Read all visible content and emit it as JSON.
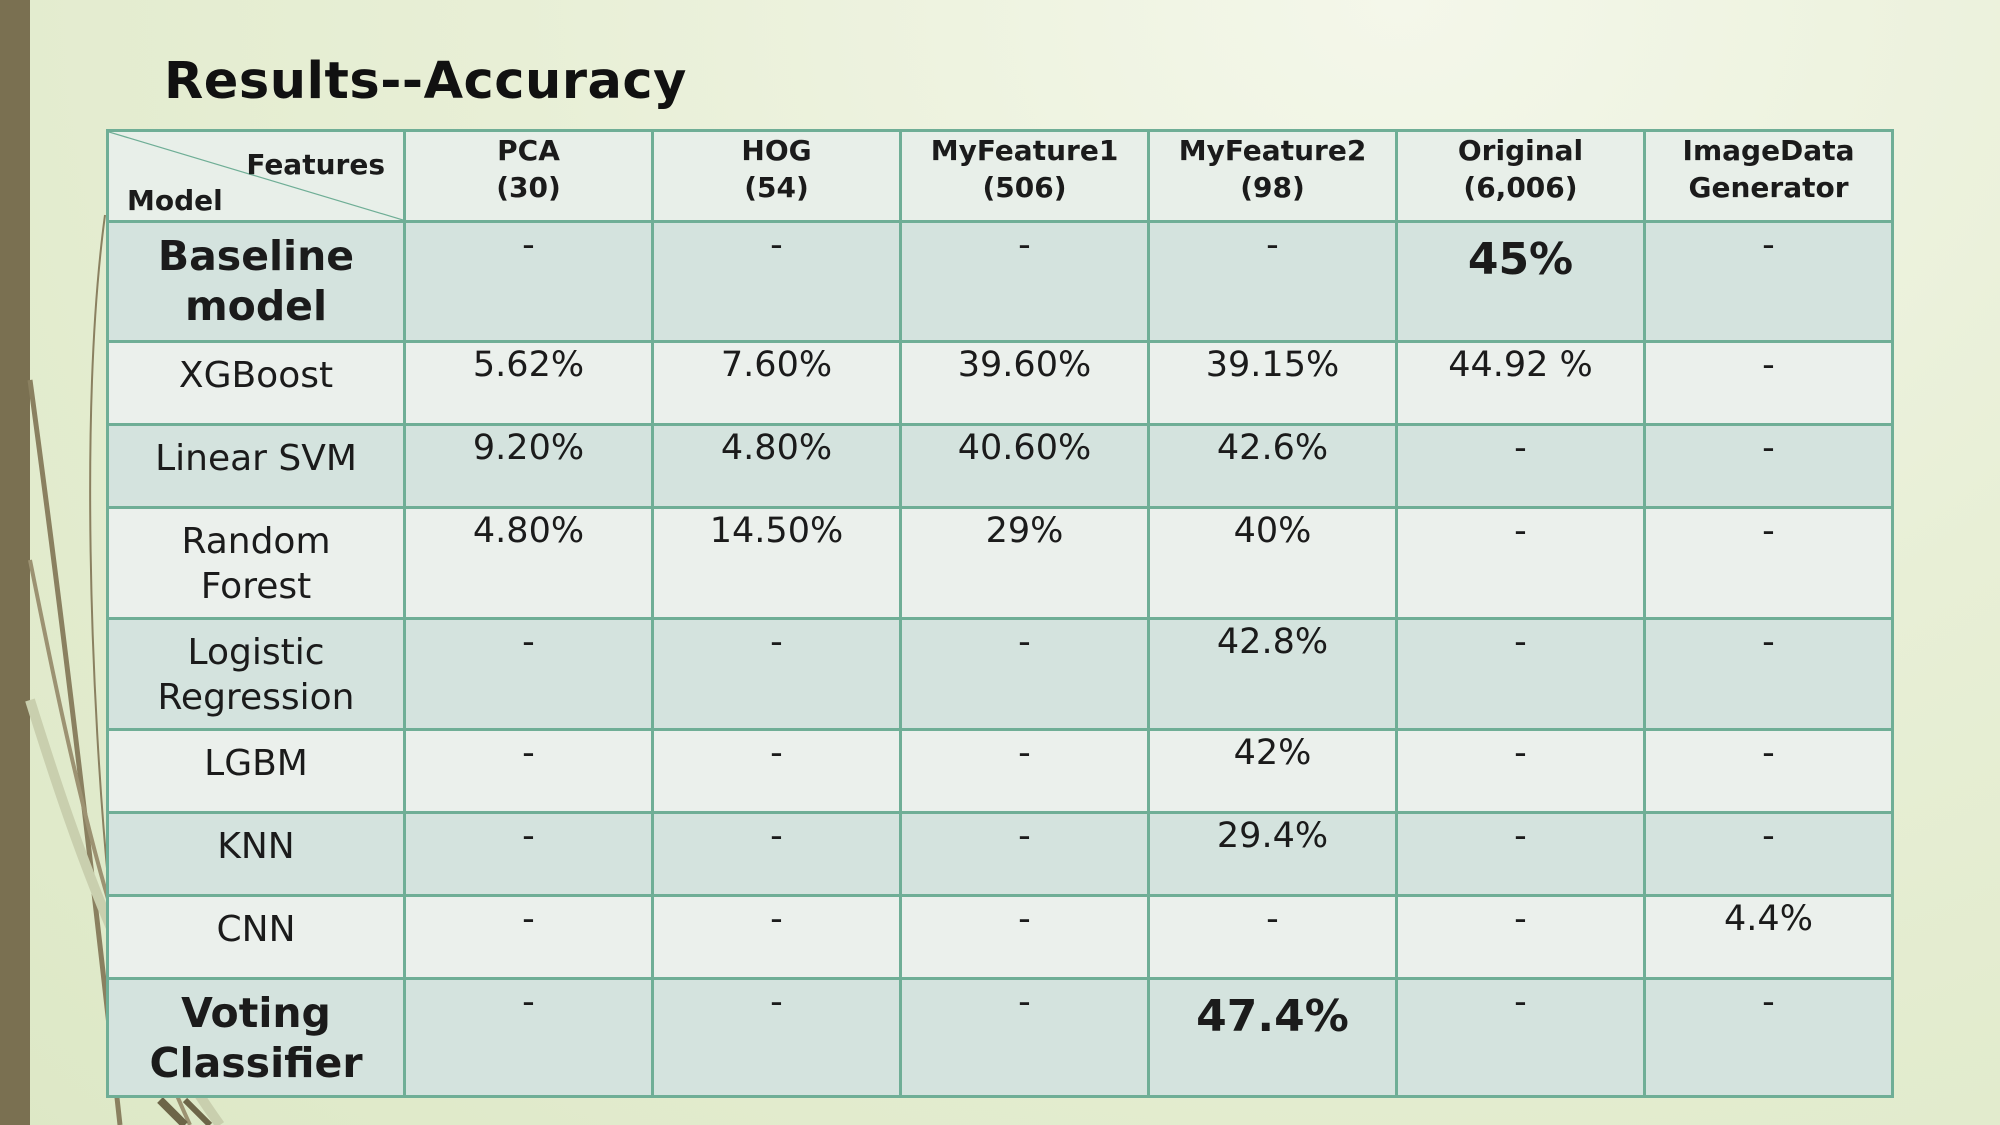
{
  "title": "Results--Accuracy",
  "table": {
    "corner_top_label": "Features",
    "corner_bottom_label": "Model",
    "columns": [
      {
        "line1": "PCA",
        "line2": "(30)"
      },
      {
        "line1": "HOG",
        "line2": "(54)"
      },
      {
        "line1": "MyFeature1",
        "line2": "(506)"
      },
      {
        "line1": "MyFeature2",
        "line2": "(98)"
      },
      {
        "line1": "Original",
        "line2": "(6,006)"
      },
      {
        "line1": "ImageData",
        "line2": "Generator"
      }
    ],
    "rows": [
      {
        "line1": "Baseline",
        "line2": "model",
        "values": [
          "-",
          "-",
          "-",
          "-",
          "45%",
          "-"
        ]
      },
      {
        "line1": "XGBoost",
        "line2": "",
        "values": [
          "5.62%",
          "7.60%",
          "39.60%",
          "39.15%",
          "44.92 %",
          "-"
        ]
      },
      {
        "line1": "Linear SVM",
        "line2": "",
        "values": [
          "9.20%",
          "4.80%",
          "40.60%",
          "42.6%",
          "-",
          "-"
        ]
      },
      {
        "line1": "Random",
        "line2": "Forest",
        "values": [
          "4.80%",
          "14.50%",
          "29%",
          "40%",
          "-",
          "-"
        ]
      },
      {
        "line1": "Logistic",
        "line2": "Regression",
        "values": [
          "-",
          "-",
          "-",
          "42.8%",
          "-",
          "-"
        ]
      },
      {
        "line1": "LGBM",
        "line2": "",
        "values": [
          "-",
          "-",
          "-",
          "42%",
          "-",
          "-"
        ]
      },
      {
        "line1": "KNN",
        "line2": "",
        "values": [
          "-",
          "-",
          "-",
          "29.4%",
          "-",
          "-"
        ]
      },
      {
        "line1": "CNN",
        "line2": "",
        "values": [
          "-",
          "-",
          "-",
          "-",
          "-",
          "4.4%"
        ]
      },
      {
        "line1": "Voting",
        "line2": "Classifier",
        "values": [
          "-",
          "-",
          "-",
          "47.4%",
          "-",
          "-"
        ]
      }
    ]
  },
  "colors": {
    "background": "#e8efd6",
    "left_bar": "#7a7051",
    "table_border": "#6fae96",
    "row_light": "#ebf0ec",
    "row_dark": "#d4e3de"
  }
}
